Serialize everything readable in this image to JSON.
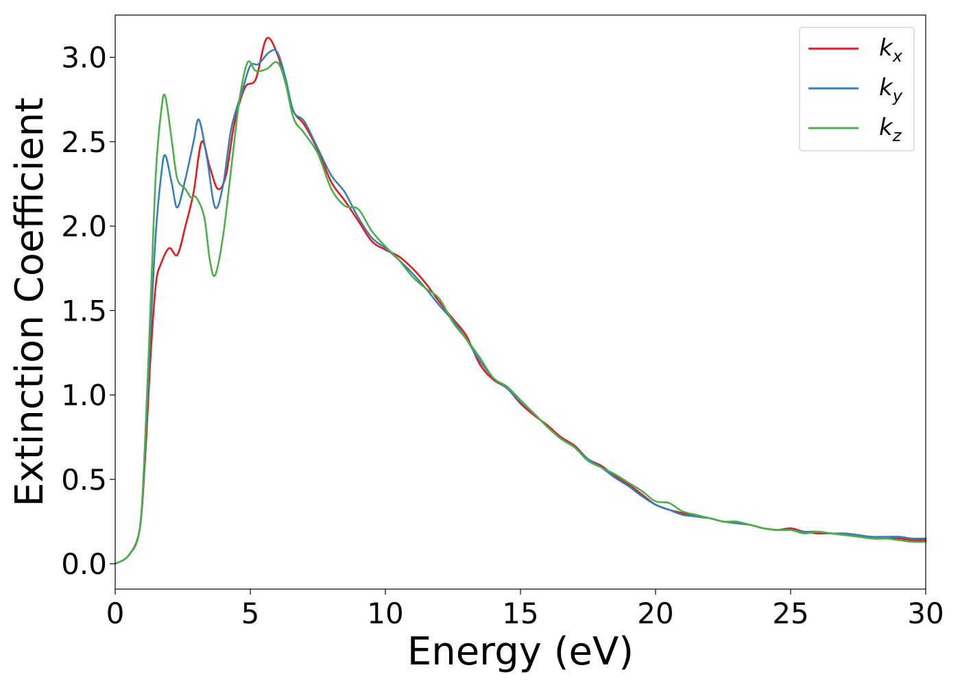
{
  "chart_data": {
    "type": "line",
    "xlabel": "Energy (eV)",
    "ylabel": "Extinction Coefficient",
    "xlim": [
      0,
      30
    ],
    "ylim": [
      -0.15,
      3.25
    ],
    "xticks": [
      "0",
      "5",
      "10",
      "15",
      "20",
      "25",
      "30"
    ],
    "yticks": [
      "0.0",
      "0.5",
      "1.0",
      "1.5",
      "2.0",
      "2.5",
      "3.0"
    ],
    "grid": false,
    "legend_position": "top-right",
    "series": [
      {
        "name": "k_x",
        "legend_main": "k",
        "legend_sub": "x",
        "color": "#e41a1c",
        "points": [
          [
            0,
            0
          ],
          [
            0.5,
            0.05
          ],
          [
            0.9,
            0.2
          ],
          [
            1.1,
            0.6
          ],
          [
            1.3,
            1.2
          ],
          [
            1.5,
            1.65
          ],
          [
            1.7,
            1.78
          ],
          [
            2.0,
            1.87
          ],
          [
            2.3,
            1.83
          ],
          [
            2.6,
            2.0
          ],
          [
            2.9,
            2.2
          ],
          [
            3.2,
            2.5
          ],
          [
            3.5,
            2.35
          ],
          [
            3.8,
            2.22
          ],
          [
            4.1,
            2.3
          ],
          [
            4.4,
            2.6
          ],
          [
            4.8,
            2.82
          ],
          [
            5.2,
            2.87
          ],
          [
            5.6,
            3.11
          ],
          [
            6.0,
            3.02
          ],
          [
            6.3,
            2.85
          ],
          [
            6.6,
            2.68
          ],
          [
            7.0,
            2.6
          ],
          [
            7.5,
            2.45
          ],
          [
            8.0,
            2.26
          ],
          [
            8.5,
            2.15
          ],
          [
            9.0,
            2.03
          ],
          [
            9.5,
            1.91
          ],
          [
            10.0,
            1.86
          ],
          [
            10.5,
            1.82
          ],
          [
            11.0,
            1.75
          ],
          [
            11.5,
            1.66
          ],
          [
            12.0,
            1.55
          ],
          [
            12.5,
            1.45
          ],
          [
            13.0,
            1.35
          ],
          [
            13.5,
            1.18
          ],
          [
            14.0,
            1.09
          ],
          [
            14.5,
            1.04
          ],
          [
            15.0,
            0.95
          ],
          [
            15.5,
            0.88
          ],
          [
            16.0,
            0.82
          ],
          [
            16.5,
            0.75
          ],
          [
            17.0,
            0.7
          ],
          [
            17.5,
            0.62
          ],
          [
            18.0,
            0.58
          ],
          [
            18.5,
            0.52
          ],
          [
            19.0,
            0.47
          ],
          [
            19.5,
            0.41
          ],
          [
            20.0,
            0.35
          ],
          [
            20.5,
            0.32
          ],
          [
            21.0,
            0.3
          ],
          [
            21.5,
            0.28
          ],
          [
            22.0,
            0.27
          ],
          [
            22.5,
            0.25
          ],
          [
            23.0,
            0.24
          ],
          [
            23.5,
            0.23
          ],
          [
            24.0,
            0.21
          ],
          [
            24.5,
            0.2
          ],
          [
            25.0,
            0.21
          ],
          [
            25.5,
            0.19
          ],
          [
            26.0,
            0.18
          ],
          [
            26.5,
            0.18
          ],
          [
            27.0,
            0.17
          ],
          [
            27.5,
            0.17
          ],
          [
            28.0,
            0.15
          ],
          [
            28.5,
            0.15
          ],
          [
            29.0,
            0.15
          ],
          [
            29.5,
            0.14
          ],
          [
            30.0,
            0.14
          ]
        ]
      },
      {
        "name": "k_y",
        "legend_main": "k",
        "legend_sub": "y",
        "color": "#377eb8",
        "points": [
          [
            0,
            0
          ],
          [
            0.5,
            0.05
          ],
          [
            0.9,
            0.2
          ],
          [
            1.1,
            0.65
          ],
          [
            1.3,
            1.35
          ],
          [
            1.5,
            1.95
          ],
          [
            1.7,
            2.3
          ],
          [
            1.85,
            2.42
          ],
          [
            2.1,
            2.25
          ],
          [
            2.3,
            2.11
          ],
          [
            2.6,
            2.28
          ],
          [
            2.9,
            2.5
          ],
          [
            3.1,
            2.63
          ],
          [
            3.4,
            2.4
          ],
          [
            3.7,
            2.11
          ],
          [
            4.0,
            2.25
          ],
          [
            4.3,
            2.58
          ],
          [
            4.7,
            2.8
          ],
          [
            5.0,
            2.95
          ],
          [
            5.3,
            2.96
          ],
          [
            5.7,
            3.03
          ],
          [
            6.0,
            3.03
          ],
          [
            6.3,
            2.88
          ],
          [
            6.6,
            2.68
          ],
          [
            7.0,
            2.62
          ],
          [
            7.5,
            2.46
          ],
          [
            8.0,
            2.3
          ],
          [
            8.5,
            2.2
          ],
          [
            9.0,
            2.05
          ],
          [
            9.5,
            1.93
          ],
          [
            10.0,
            1.87
          ],
          [
            10.5,
            1.8
          ],
          [
            11.0,
            1.72
          ],
          [
            11.5,
            1.63
          ],
          [
            12.0,
            1.53
          ],
          [
            12.5,
            1.44
          ],
          [
            13.0,
            1.33
          ],
          [
            13.5,
            1.2
          ],
          [
            14.0,
            1.1
          ],
          [
            14.5,
            1.04
          ],
          [
            15.0,
            0.96
          ],
          [
            15.5,
            0.89
          ],
          [
            16.0,
            0.81
          ],
          [
            16.5,
            0.74
          ],
          [
            17.0,
            0.69
          ],
          [
            17.5,
            0.62
          ],
          [
            18.0,
            0.57
          ],
          [
            18.5,
            0.51
          ],
          [
            19.0,
            0.46
          ],
          [
            19.5,
            0.4
          ],
          [
            20.0,
            0.35
          ],
          [
            20.5,
            0.32
          ],
          [
            21.0,
            0.29
          ],
          [
            21.5,
            0.28
          ],
          [
            22.0,
            0.27
          ],
          [
            22.5,
            0.25
          ],
          [
            23.0,
            0.24
          ],
          [
            23.5,
            0.23
          ],
          [
            24.0,
            0.21
          ],
          [
            24.5,
            0.2
          ],
          [
            25.0,
            0.2
          ],
          [
            25.5,
            0.19
          ],
          [
            26.0,
            0.19
          ],
          [
            26.5,
            0.18
          ],
          [
            27.0,
            0.18
          ],
          [
            27.5,
            0.17
          ],
          [
            28.0,
            0.16
          ],
          [
            28.5,
            0.16
          ],
          [
            29.0,
            0.16
          ],
          [
            29.5,
            0.15
          ],
          [
            30.0,
            0.15
          ]
        ]
      },
      {
        "name": "k_z",
        "legend_main": "k",
        "legend_sub": "z",
        "color": "#4daf4a",
        "points": [
          [
            0,
            0
          ],
          [
            0.5,
            0.05
          ],
          [
            0.9,
            0.2
          ],
          [
            1.1,
            0.7
          ],
          [
            1.3,
            1.5
          ],
          [
            1.5,
            2.3
          ],
          [
            1.7,
            2.68
          ],
          [
            1.85,
            2.77
          ],
          [
            2.1,
            2.5
          ],
          [
            2.3,
            2.28
          ],
          [
            2.6,
            2.22
          ],
          [
            2.8,
            2.17
          ],
          [
            3.0,
            2.17
          ],
          [
            3.3,
            2.05
          ],
          [
            3.5,
            1.8
          ],
          [
            3.7,
            1.71
          ],
          [
            4.0,
            1.95
          ],
          [
            4.3,
            2.35
          ],
          [
            4.6,
            2.75
          ],
          [
            4.9,
            2.97
          ],
          [
            5.2,
            2.92
          ],
          [
            5.6,
            2.93
          ],
          [
            6.0,
            2.97
          ],
          [
            6.3,
            2.85
          ],
          [
            6.6,
            2.64
          ],
          [
            7.0,
            2.55
          ],
          [
            7.5,
            2.43
          ],
          [
            8.0,
            2.22
          ],
          [
            8.5,
            2.12
          ],
          [
            9.0,
            2.1
          ],
          [
            9.5,
            1.97
          ],
          [
            10.0,
            1.88
          ],
          [
            10.5,
            1.8
          ],
          [
            11.0,
            1.7
          ],
          [
            11.5,
            1.63
          ],
          [
            12.0,
            1.57
          ],
          [
            12.5,
            1.43
          ],
          [
            13.0,
            1.33
          ],
          [
            13.5,
            1.22
          ],
          [
            14.0,
            1.1
          ],
          [
            14.5,
            1.05
          ],
          [
            15.0,
            0.97
          ],
          [
            15.5,
            0.89
          ],
          [
            16.0,
            0.81
          ],
          [
            16.5,
            0.74
          ],
          [
            17.0,
            0.69
          ],
          [
            17.5,
            0.61
          ],
          [
            18.0,
            0.57
          ],
          [
            18.5,
            0.53
          ],
          [
            19.0,
            0.48
          ],
          [
            19.5,
            0.43
          ],
          [
            20.0,
            0.37
          ],
          [
            20.5,
            0.36
          ],
          [
            21.0,
            0.31
          ],
          [
            21.5,
            0.29
          ],
          [
            22.0,
            0.27
          ],
          [
            22.5,
            0.25
          ],
          [
            23.0,
            0.25
          ],
          [
            23.5,
            0.23
          ],
          [
            24.0,
            0.21
          ],
          [
            24.5,
            0.2
          ],
          [
            25.0,
            0.2
          ],
          [
            25.5,
            0.18
          ],
          [
            26.0,
            0.19
          ],
          [
            26.5,
            0.18
          ],
          [
            27.0,
            0.17
          ],
          [
            27.5,
            0.16
          ],
          [
            28.0,
            0.15
          ],
          [
            28.5,
            0.15
          ],
          [
            29.0,
            0.14
          ],
          [
            29.5,
            0.13
          ],
          [
            30.0,
            0.13
          ]
        ]
      }
    ]
  }
}
